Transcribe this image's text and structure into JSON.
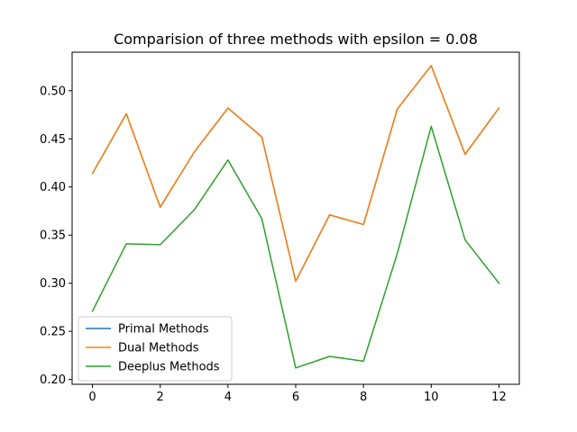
{
  "chart_data": {
    "type": "line",
    "title": "Comparision of three methods with epsilon = 0.08",
    "xlabel": "",
    "ylabel": "",
    "x": [
      0,
      1,
      2,
      3,
      4,
      5,
      6,
      7,
      8,
      9,
      10,
      11,
      12
    ],
    "xlim": [
      -0.6,
      12.6
    ],
    "ylim": [
      0.195,
      0.54
    ],
    "xticks": [
      0,
      2,
      4,
      6,
      8,
      10,
      12
    ],
    "yticks": [
      0.2,
      0.25,
      0.3,
      0.35,
      0.4,
      0.45,
      0.5
    ],
    "ytick_labels": [
      "0.20",
      "0.25",
      "0.30",
      "0.35",
      "0.40",
      "0.45",
      "0.50"
    ],
    "grid": false,
    "legend_position": "lower-left",
    "series": [
      {
        "name": "Primal Methods",
        "color": "#1f77b4",
        "values": [
          0.414,
          0.476,
          0.379,
          0.436,
          0.482,
          0.452,
          0.302,
          0.371,
          0.361,
          0.481,
          0.526,
          0.434,
          0.482
        ]
      },
      {
        "name": "Dual Methods",
        "color": "#ff7f0e",
        "values": [
          0.414,
          0.476,
          0.379,
          0.436,
          0.482,
          0.452,
          0.302,
          0.371,
          0.361,
          0.481,
          0.526,
          0.434,
          0.482
        ]
      },
      {
        "name": "Deeplus Methods",
        "color": "#2ca02c",
        "values": [
          0.271,
          0.341,
          0.34,
          0.376,
          0.428,
          0.367,
          0.212,
          0.224,
          0.219,
          0.331,
          0.463,
          0.345,
          0.3
        ]
      }
    ]
  }
}
